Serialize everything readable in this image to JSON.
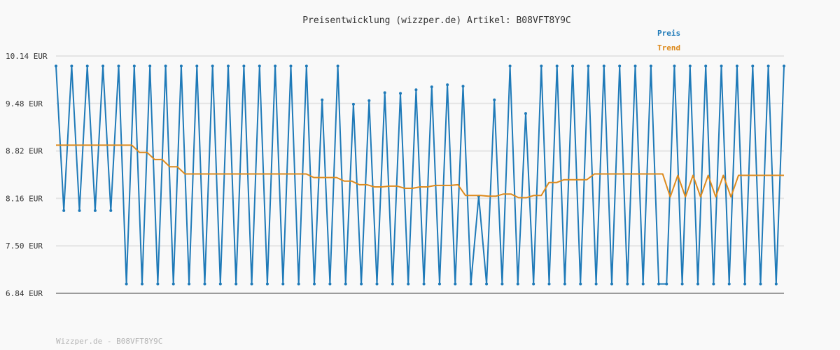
{
  "chart_data": {
    "type": "line",
    "title": "Preisentwicklung (wizzper.de) Artikel: B08VFT8Y9C",
    "xlabel": "",
    "ylabel": "",
    "ylim": [
      6.84,
      10.14
    ],
    "y_ticks": [
      "10.14 EUR",
      "9.48 EUR",
      "8.82 EUR",
      "8.16 EUR",
      "7.50 EUR",
      "6.84 EUR"
    ],
    "y_tick_values": [
      10.14,
      9.48,
      8.82,
      8.16,
      7.5,
      6.84
    ],
    "grid": true,
    "legend_position": "top-right",
    "series": [
      {
        "name": "Preis",
        "color": "#1f7ab8",
        "values": [
          10.0,
          7.99,
          10.0,
          7.99,
          10.0,
          7.99,
          10.0,
          7.99,
          10.0,
          6.97,
          10.0,
          6.97,
          10.0,
          6.97,
          10.0,
          6.97,
          10.0,
          6.97,
          10.0,
          6.97,
          10.0,
          6.97,
          10.0,
          6.97,
          10.0,
          6.97,
          10.0,
          6.97,
          10.0,
          6.97,
          10.0,
          6.97,
          10.0,
          6.97,
          9.53,
          6.97,
          10.0,
          6.97,
          9.47,
          6.97,
          9.52,
          6.97,
          9.63,
          6.97,
          9.62,
          6.97,
          9.67,
          6.97,
          9.71,
          6.97,
          9.74,
          6.97,
          9.72,
          6.97,
          8.19,
          6.97,
          9.53,
          6.97,
          10.0,
          6.97,
          9.34,
          6.97,
          10.0,
          6.97,
          10.0,
          6.97,
          10.0,
          6.97,
          10.0,
          6.97,
          10.0,
          6.97,
          10.0,
          6.97,
          10.0,
          6.97,
          10.0,
          6.97,
          6.97,
          10.0,
          6.97,
          10.0,
          6.97,
          10.0,
          6.97,
          10.0,
          6.97,
          10.0,
          6.97,
          10.0,
          6.97,
          10.0,
          6.97,
          10.0
        ]
      },
      {
        "name": "Trend",
        "color": "#dd8a1c",
        "values": [
          8.9,
          8.9,
          8.9,
          8.9,
          8.9,
          8.9,
          8.9,
          8.9,
          8.9,
          8.9,
          8.9,
          8.8,
          8.8,
          8.7,
          8.7,
          8.6,
          8.6,
          8.5,
          8.5,
          8.5,
          8.5,
          8.5,
          8.5,
          8.5,
          8.5,
          8.5,
          8.5,
          8.5,
          8.5,
          8.5,
          8.5,
          8.5,
          8.5,
          8.5,
          8.45,
          8.45,
          8.45,
          8.45,
          8.4,
          8.4,
          8.35,
          8.35,
          8.32,
          8.32,
          8.33,
          8.33,
          8.3,
          8.3,
          8.32,
          8.32,
          8.34,
          8.34,
          8.34,
          8.35,
          8.2,
          8.2,
          8.2,
          8.19,
          8.19,
          8.22,
          8.22,
          8.17,
          8.17,
          8.2,
          8.2,
          8.38,
          8.38,
          8.42,
          8.42,
          8.42,
          8.42,
          8.5,
          8.5,
          8.5,
          8.5,
          8.5,
          8.5,
          8.5,
          8.5,
          8.5,
          8.5,
          8.18,
          8.48,
          8.18,
          8.48,
          8.18,
          8.48,
          8.18,
          8.48,
          8.18,
          8.48,
          8.48,
          8.48,
          8.48,
          8.48,
          8.48,
          8.48
        ]
      }
    ]
  },
  "footer": "Wizzper.de - B08VFT8Y9C"
}
